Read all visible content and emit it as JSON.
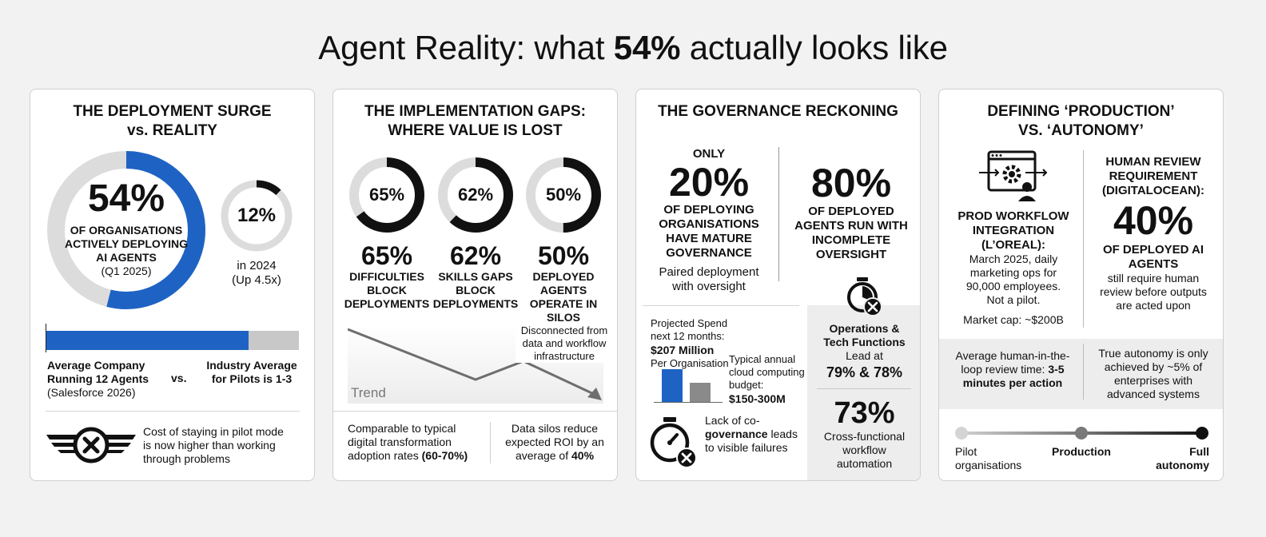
{
  "title": {
    "prefix": "Agent Reality: what ",
    "highlight": "54%",
    "suffix": " actually looks like"
  },
  "panel1": {
    "title_line1": "THE DEPLOYMENT SURGE",
    "title_line2": "vs. REALITY",
    "ring_main": {
      "value": "54%",
      "fraction": 0.54,
      "label_line1": "OF ORGANISATIONS",
      "label_line2": "ACTIVELY DEPLOYING",
      "label_line3": "AI AGENTS",
      "sub": "(Q1 2025)"
    },
    "ring_small": {
      "value": "12%",
      "fraction": 0.12,
      "label": "in 2024",
      "sub": "(Up 4.5x)"
    },
    "bar_fill_fraction": 0.8,
    "compare_left_line1": "Average Company",
    "compare_left_line2": "Running 12 Agents",
    "compare_left_sub": "(Salesforce 2026)",
    "vs": "vs.",
    "compare_right_line1": "Industry Average",
    "compare_right_line2": "for Pilots is 1-3",
    "footer_line1": "Cost of staying in pilot mode",
    "footer_line2": "is now higher than working",
    "footer_line3": "through problems"
  },
  "panel2": {
    "title_line1": "THE IMPLEMENTATION GAPS:",
    "title_line2": "WHERE VALUE IS LOST",
    "gaps": [
      {
        "value": "65%",
        "fraction": 0.65,
        "label_line1": "DIFFICULTIES",
        "label_line2": "BLOCK",
        "label_line3": "DEPLOYMENTS"
      },
      {
        "value": "62%",
        "fraction": 0.62,
        "label_line1": "SKILLS GAPS",
        "label_line2": "BLOCK",
        "label_line3": "DEPLOYMENTS"
      },
      {
        "value": "50%",
        "fraction": 0.5,
        "label_line1": "DEPLOYED",
        "label_line2": "AGENTS",
        "label_line3": "OPERATE IN",
        "label_line4": "SILOS"
      }
    ],
    "silo_note_line1": "Disconnected from",
    "silo_note_line2": "data and workflow",
    "silo_note_line3": "infrastructure",
    "trend_label": "Trend",
    "footer_left_line1": "Comparable to typical",
    "footer_left_line2": "digital transformation",
    "footer_left_line3": "adoption rates ",
    "footer_left_bold": "(60-70%)",
    "footer_right_line1": "Data silos reduce",
    "footer_right_line2": "expected ROI by an",
    "footer_right_line3": "average of ",
    "footer_right_bold": "40%"
  },
  "panel3": {
    "title": "THE GOVERNANCE RECKONING",
    "left": {
      "prefix": "ONLY",
      "value": "20%",
      "label_line1": "OF DEPLOYING",
      "label_line2": "ORGANISATIONS",
      "label_line3": "HAVE MATURE",
      "label_line4": "GOVERNANCE",
      "sub_line1": "Paired deployment",
      "sub_line2": "with oversight"
    },
    "right": {
      "value": "80%",
      "label_line1": "OF DEPLOYED",
      "label_line2": "AGENTS RUN WITH",
      "label_line3": "INCOMPLETE",
      "label_line4": "OVERSIGHT"
    },
    "spend_line1": "Projected Spend",
    "spend_line2": "next 12 months:",
    "spend_value": "$207 Million",
    "spend_sub": "Per Organisation",
    "cloud_line1": "Typical annual",
    "cloud_line2": "cloud computing",
    "cloud_line3": "budget:",
    "cloud_value": "$150-300M",
    "ops_line1": "Operations &",
    "ops_line2": "Tech Functions",
    "ops_line3": "Lead at",
    "ops_value": "79% & 78%",
    "failure_line1": "Lack of co-",
    "failure_line2": "governance ",
    "failure_bold": "governance",
    "failure_line2b": " leads",
    "failure_line3": "to visible failures",
    "xfunc_value": "73%",
    "xfunc_line1": "Cross-functional",
    "xfunc_line2": "workflow",
    "xfunc_line3": "automation",
    "colors": {
      "blue": "#1e63c4",
      "grey": "#8a8a8a"
    }
  },
  "panel4": {
    "title_line1": "DEFINING ‘PRODUCTION’",
    "title_line2": "VS. ‘AUTONOMY’",
    "left_line1": "PROD WORKFLOW",
    "left_line2": "INTEGRATION",
    "left_line3": "(L’OREAL):",
    "left_desc_line1": "March 2025, daily",
    "left_desc_line2": "marketing ops for",
    "left_desc_line3": "90,000 employees.",
    "left_desc_line4": "Not a pilot.",
    "left_cap": "Market cap: ~$200B",
    "right_line1": "HUMAN REVIEW",
    "right_line2": "REQUIREMENT",
    "right_line3": "(DIGITALOCEAN):",
    "right_value": "40%",
    "right_label_line1": "OF DEPLOYED AI",
    "right_label_line2": "AGENTS",
    "right_desc_line1": "still require human",
    "right_desc_line2": "review before outputs",
    "right_desc_line3": "are acted upon",
    "mid_left_line1": "Average human-in-the-",
    "mid_left_line2": "loop review time: ",
    "mid_left_bold1": "3-5",
    "mid_left_bold2": "minutes per action",
    "mid_right_line1": "True autonomy is only",
    "mid_right_line2": "achieved by ~5% of",
    "mid_right_line3": "enterprises with",
    "mid_right_line4": "advanced systems",
    "scale": [
      "Pilot",
      "organisations",
      "Production",
      "Full",
      "autonomy"
    ]
  }
}
